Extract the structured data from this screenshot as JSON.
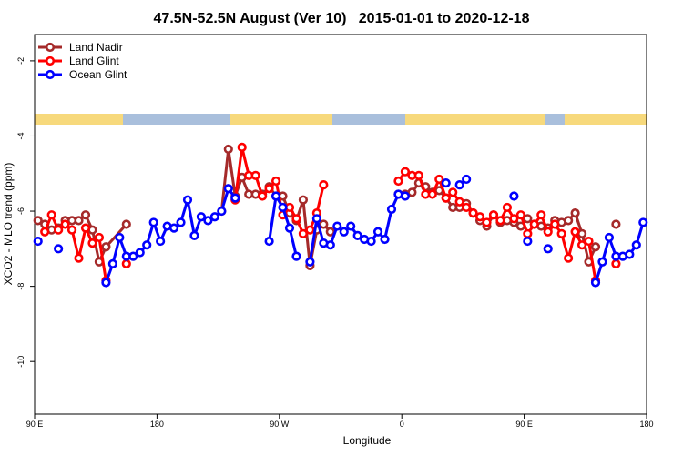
{
  "chart_data": {
    "type": "line",
    "title": "47.5N-52.5N August (Ver 10)   2015-01-01 to 2020-12-18",
    "xlabel": "Longitude",
    "ylabel": "XCO2 - MLO trend (ppm)",
    "xlim": [
      90,
      540
    ],
    "ylim": [
      -11.4,
      -1.3
    ],
    "xticks": [
      {
        "value": 90,
        "label": "90 E"
      },
      180,
      {
        "value": 270,
        "label": "90 W"
      },
      {
        "value": 360,
        "label": "0"
      },
      {
        "value": 450,
        "label": "90 E"
      },
      {
        "value": 540,
        "label": "180"
      }
    ],
    "yticks": [
      -2,
      -4,
      -6,
      -8,
      -10
    ],
    "grid": false,
    "legend": "topleft",
    "series": [
      {
        "name": "Land Nadir",
        "color": "#a52a2a",
        "x": [
          92.5,
          97.5,
          102.5,
          107.5,
          112.5,
          117.5,
          122.5,
          127.5,
          132.5,
          137.5,
          142.5,
          157.5,
          190,
          227.5,
          232.5,
          237.5,
          242.5,
          247.5,
          252.5,
          257.5,
          262.5,
          267.5,
          272.5,
          277.5,
          282.5,
          287.5,
          292.5,
          297.5,
          302.5,
          307.5,
          330,
          357.5,
          362.5,
          367.5,
          372.5,
          377.5,
          382.5,
          387.5,
          392.5,
          397.5,
          402.5,
          407.5,
          412.5,
          417.5,
          422.5,
          427.5,
          432.5,
          437.5,
          442.5,
          447.5,
          452.5,
          457.5,
          462.5,
          467.5,
          472.5,
          477.5,
          482.5,
          487.5,
          492.5,
          497.5,
          502.5,
          510,
          517.5
        ],
        "values": [
          -6.25,
          -6.35,
          -6.5,
          -6.45,
          -6.25,
          -6.25,
          -6.25,
          -6.1,
          -6.5,
          -7.35,
          -6.95,
          -6.35,
          null,
          -6.0,
          -4.35,
          -5.6,
          -5.1,
          -5.55,
          -5.55,
          -5.55,
          -5.35,
          -5.6,
          -5.6,
          -6.05,
          -6.25,
          -5.7,
          -7.45,
          -6.5,
          -6.35,
          -6.55,
          null,
          -5.55,
          -5.55,
          -5.5,
          -5.25,
          -5.35,
          -5.5,
          -5.45,
          -5.65,
          -5.9,
          -5.9,
          -5.8,
          -6.05,
          -6.25,
          -6.4,
          -6.1,
          -6.3,
          -6.25,
          -6.3,
          -6.4,
          -6.2,
          -6.35,
          -6.4,
          -6.45,
          -6.25,
          -6.3,
          -6.25,
          -6.05,
          -6.6,
          -7.35,
          -6.95,
          null,
          -6.35
        ]
      },
      {
        "name": "Land Glint",
        "color": "#ff0000",
        "x": [
          97.5,
          102.5,
          107.5,
          112.5,
          117.5,
          122.5,
          127.5,
          132.5,
          137.5,
          142.5,
          150,
          157.5,
          200,
          237.5,
          242.5,
          247.5,
          252.5,
          257.5,
          262.5,
          267.5,
          272.5,
          277.5,
          282.5,
          287.5,
          292.5,
          297.5,
          302.5,
          330,
          357.5,
          362.5,
          367.5,
          372.5,
          377.5,
          382.5,
          387.5,
          392.5,
          397.5,
          402.5,
          407.5,
          412.5,
          417.5,
          422.5,
          427.5,
          432.5,
          437.5,
          442.5,
          447.5,
          452.5,
          457.5,
          462.5,
          467.5,
          472.5,
          477.5,
          482.5,
          487.5,
          492.5,
          497.5,
          502.5,
          510,
          517.5
        ],
        "values": [
          -6.55,
          -6.1,
          -6.5,
          -6.35,
          -6.5,
          -7.25,
          -6.45,
          -6.85,
          -6.7,
          -7.85,
          null,
          -7.4,
          null,
          -5.7,
          -4.3,
          -5.05,
          -5.05,
          -5.6,
          -5.4,
          -5.2,
          -6.1,
          -5.9,
          -6.2,
          -6.6,
          -6.5,
          -6.05,
          -5.3,
          null,
          -5.2,
          -4.95,
          -5.05,
          -5.05,
          -5.55,
          -5.55,
          -5.15,
          -5.65,
          -5.5,
          -5.75,
          -5.9,
          -6.05,
          -6.15,
          -6.3,
          -6.1,
          -6.25,
          -5.9,
          -6.2,
          -6.1,
          -6.6,
          -6.35,
          -6.1,
          -6.55,
          -6.35,
          -6.6,
          -7.25,
          -6.55,
          -6.9,
          -6.8,
          -7.85,
          null,
          -7.4
        ]
      },
      {
        "name": "Ocean Glint",
        "color": "#0000ff",
        "x": [
          92.5,
          100,
          107.5,
          125,
          142.5,
          147.5,
          152.5,
          157.5,
          162.5,
          167.5,
          172.5,
          177.5,
          182.5,
          187.5,
          192.5,
          197.5,
          202.5,
          207.5,
          212.5,
          217.5,
          222.5,
          227.5,
          232.5,
          237.5,
          250,
          262.5,
          267.5,
          272.5,
          277.5,
          282.5,
          287.5,
          292.5,
          297.5,
          302.5,
          307.5,
          312.5,
          317.5,
          322.5,
          327.5,
          332.5,
          337.5,
          342.5,
          347.5,
          352.5,
          357.5,
          362.5,
          380,
          392.5,
          397.5,
          402.5,
          407.5,
          425,
          442.5,
          447.5,
          452.5,
          460,
          467.5,
          485,
          502.5,
          507.5,
          512.5,
          517.5,
          522.5,
          527.5,
          532.5,
          537.5
        ],
        "values": [
          -6.8,
          null,
          -7.0,
          null,
          -7.9,
          -7.4,
          -6.7,
          -7.2,
          -7.2,
          -7.1,
          -6.9,
          -6.3,
          -6.8,
          -6.4,
          -6.45,
          -6.3,
          -5.7,
          -6.65,
          -6.15,
          -6.25,
          -6.15,
          -6.0,
          -5.4,
          -5.65,
          null,
          -6.8,
          -5.6,
          -5.9,
          -6.45,
          -7.2,
          null,
          -7.35,
          -6.2,
          -6.85,
          -6.9,
          -6.4,
          -6.55,
          -6.4,
          -6.65,
          -6.75,
          -6.8,
          -6.55,
          -6.75,
          -5.95,
          -5.55,
          -5.6,
          null,
          -5.25,
          null,
          -5.3,
          -5.15,
          null,
          -5.6,
          null,
          -6.8,
          null,
          -7.0,
          null,
          -7.9,
          -7.35,
          -6.7,
          -7.2,
          -7.2,
          -7.15,
          -6.9,
          -6.3
        ]
      }
    ]
  }
}
